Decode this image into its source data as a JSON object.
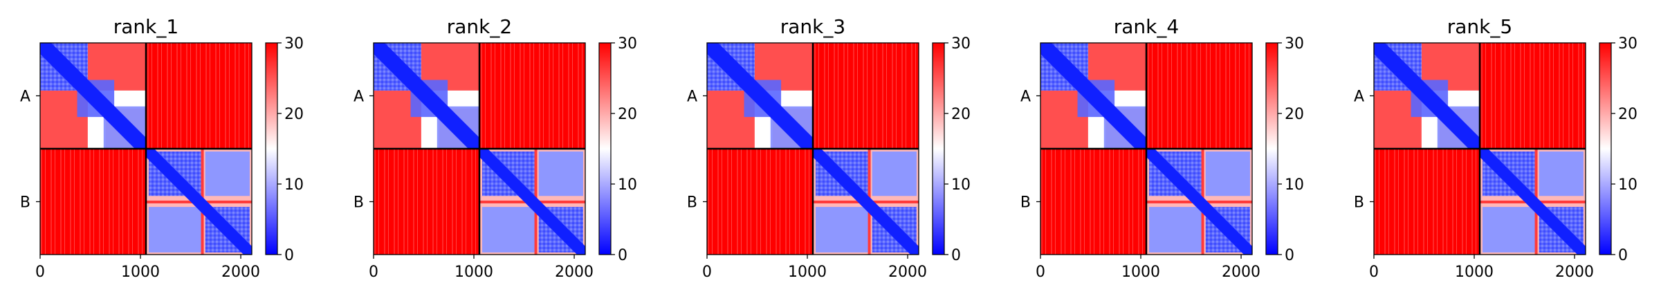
{
  "chart_data": [
    {
      "type": "heatmap",
      "title": "rank_1",
      "chain_labels": [
        "A",
        "B"
      ],
      "chain_boundary": 1055,
      "xlim": [
        0,
        2110
      ],
      "xticks": [
        0,
        1000,
        2000
      ],
      "colorbar": {
        "min": 0,
        "max": 30,
        "ticks": [
          0,
          10,
          20,
          30
        ],
        "colormap": "bwr"
      }
    },
    {
      "type": "heatmap",
      "title": "rank_2",
      "chain_labels": [
        "A",
        "B"
      ],
      "chain_boundary": 1055,
      "xlim": [
        0,
        2110
      ],
      "xticks": [
        0,
        1000,
        2000
      ],
      "colorbar": {
        "min": 0,
        "max": 30,
        "ticks": [
          0,
          10,
          20,
          30
        ],
        "colormap": "bwr"
      }
    },
    {
      "type": "heatmap",
      "title": "rank_3",
      "chain_labels": [
        "A",
        "B"
      ],
      "chain_boundary": 1055,
      "xlim": [
        0,
        2110
      ],
      "xticks": [
        0,
        1000,
        2000
      ],
      "colorbar": {
        "min": 0,
        "max": 30,
        "ticks": [
          0,
          10,
          20,
          30
        ],
        "colormap": "bwr"
      }
    },
    {
      "type": "heatmap",
      "title": "rank_4",
      "chain_labels": [
        "A",
        "B"
      ],
      "chain_boundary": 1055,
      "xlim": [
        0,
        2110
      ],
      "xticks": [
        0,
        1000,
        2000
      ],
      "colorbar": {
        "min": 0,
        "max": 30,
        "ticks": [
          0,
          10,
          20,
          30
        ],
        "colormap": "bwr"
      }
    },
    {
      "type": "heatmap",
      "title": "rank_5",
      "chain_labels": [
        "A",
        "B"
      ],
      "chain_boundary": 1055,
      "xlim": [
        0,
        2110
      ],
      "xticks": [
        0,
        1000,
        2000
      ],
      "colorbar": {
        "min": 0,
        "max": 30,
        "ticks": [
          0,
          10,
          20,
          30
        ],
        "colormap": "bwr"
      }
    }
  ],
  "colors": {
    "low": "#0000ff",
    "mid": "#ffffff",
    "high": "#ff0000",
    "boundary_line": "#000000"
  }
}
